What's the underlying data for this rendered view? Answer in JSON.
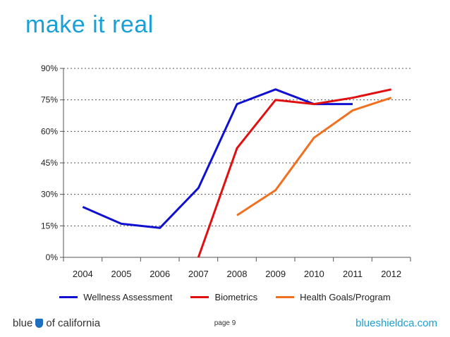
{
  "slide": {
    "title": "make it real",
    "page_label": "page 9",
    "brand_left": "blue",
    "brand_right": "of california",
    "website": "blueshieldca.com"
  },
  "colors": {
    "title": "#1aa0d8",
    "grid": "#555555"
  },
  "chart_data": {
    "type": "line",
    "title": "",
    "xlabel": "",
    "ylabel": "",
    "categories": [
      "2004",
      "2005",
      "2006",
      "2007",
      "2008",
      "2009",
      "2010",
      "2011",
      "2012"
    ],
    "yticks": [
      "0%",
      "15%",
      "30%",
      "45%",
      "60%",
      "75%",
      "90%"
    ],
    "ylim": [
      0,
      90
    ],
    "grid": true,
    "legend_position": "bottom",
    "series": [
      {
        "name": "Wellness Assessment",
        "color": "#1010d0",
        "values": [
          24,
          16,
          14,
          33,
          73,
          80,
          73,
          73,
          null
        ]
      },
      {
        "name": "Biometrics",
        "color": "#e01010",
        "values": [
          null,
          null,
          null,
          0,
          52,
          75,
          73,
          76,
          80
        ]
      },
      {
        "name": "Health Goals/Program",
        "color": "#f07020",
        "values": [
          null,
          null,
          null,
          null,
          20,
          32,
          57,
          70,
          76
        ]
      }
    ]
  }
}
